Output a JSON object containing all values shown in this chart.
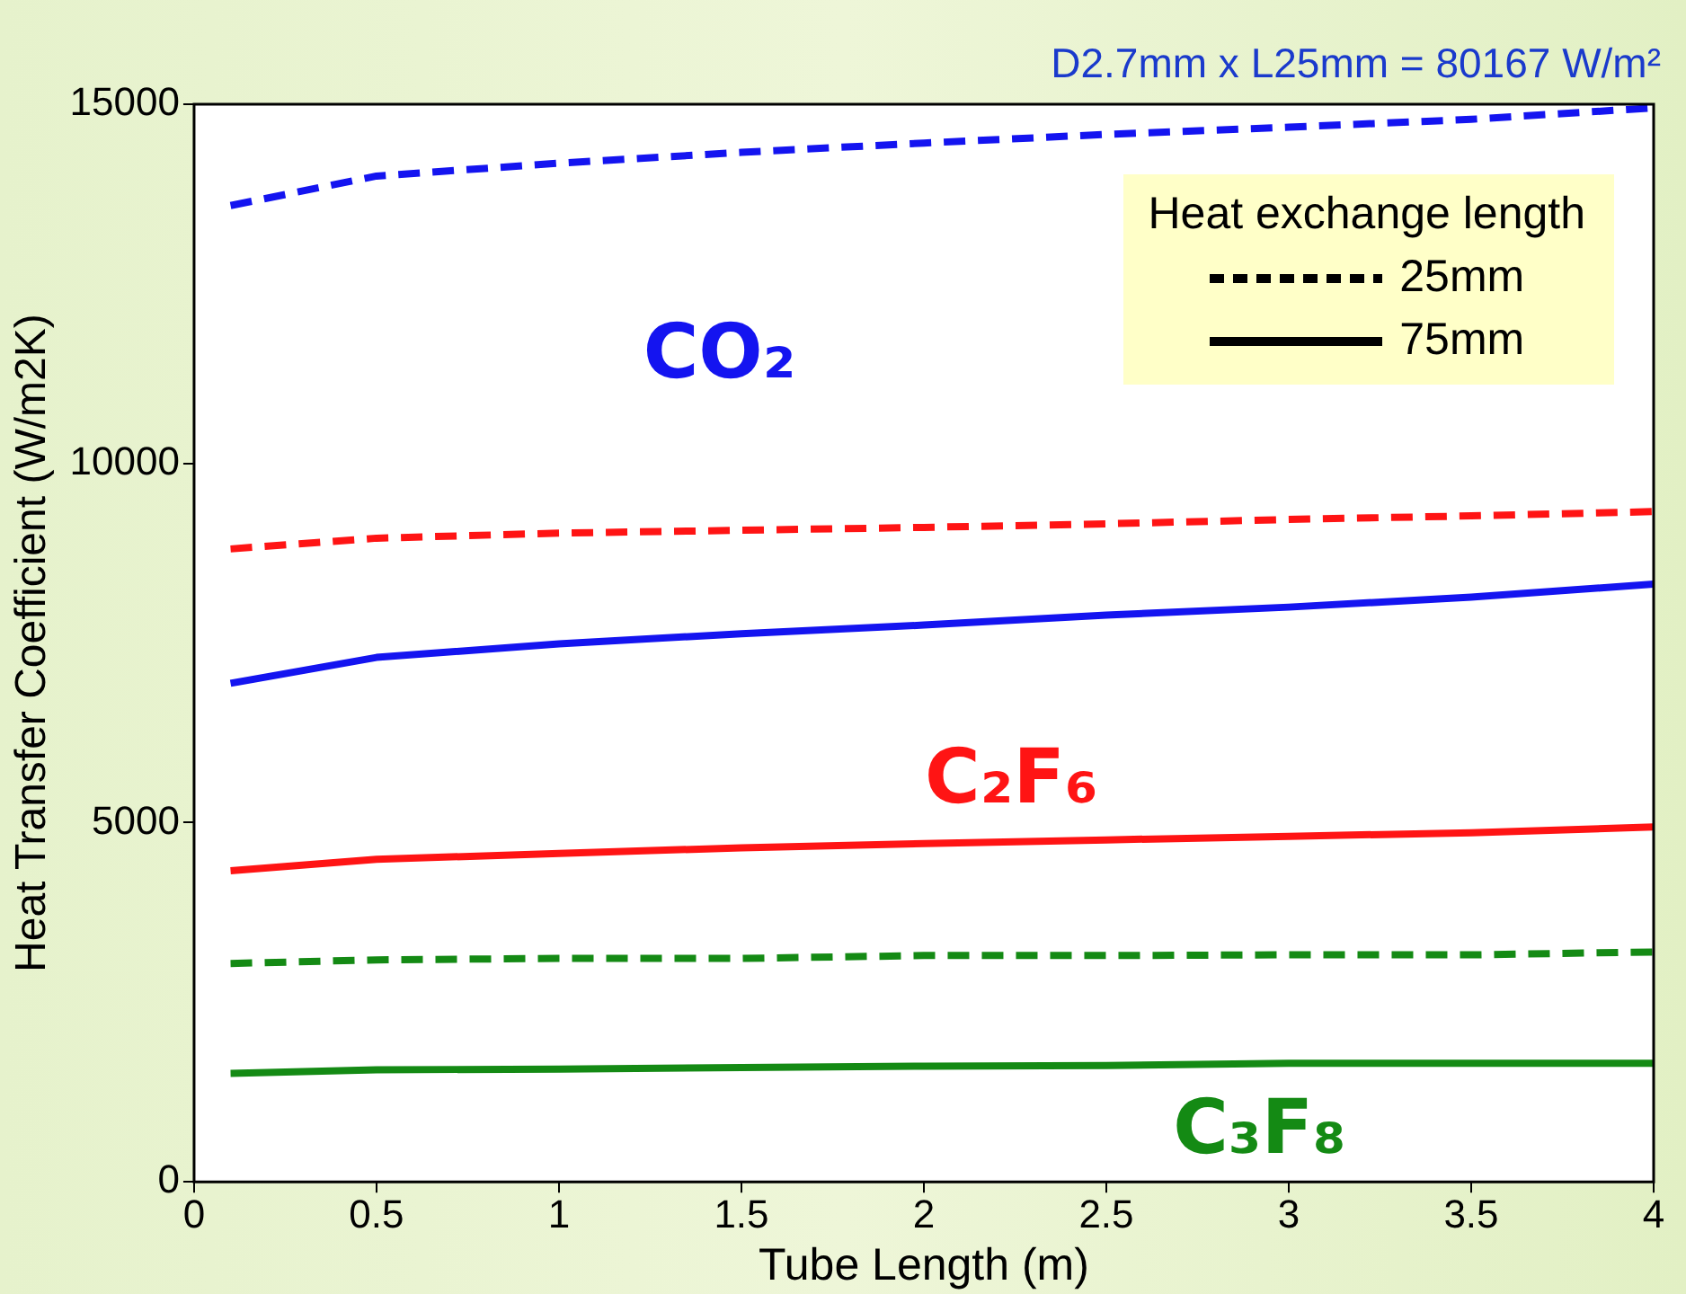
{
  "chart_data": {
    "type": "line",
    "subtitle": "D2.7mm x L25mm = 80167 W/m²",
    "xlabel": "Tube Length (m)",
    "ylabel": "Heat Transfer Coefficient (W/m2K)",
    "legend_title": "Heat exchange length",
    "grid": false,
    "marker": "none",
    "x": [
      0.1,
      0.5,
      1,
      1.5,
      2,
      2.5,
      3,
      3.5,
      4
    ],
    "xlim": [
      0,
      4
    ],
    "xticks": [
      0,
      0.5,
      1,
      1.5,
      2,
      2.5,
      3,
      3.5,
      4
    ],
    "ylim": [
      0,
      15000
    ],
    "yticks": [
      0,
      5000,
      10000,
      15000
    ],
    "series": [
      {
        "name": "CO₂",
        "color": "#1414f0",
        "line_style": "dashed",
        "values": [
          13590,
          14000,
          14180,
          14330,
          14460,
          14580,
          14680,
          14790,
          14950
        ]
      },
      {
        "color": "#1414f0",
        "line_style": "solid",
        "values": [
          6940,
          7300,
          7490,
          7630,
          7750,
          7890,
          8000,
          8140,
          8320
        ]
      },
      {
        "name": "C₂F₆",
        "color": "#ff1414",
        "line_style": "dashed",
        "values": [
          8810,
          8960,
          9030,
          9070,
          9110,
          9160,
          9220,
          9270,
          9330
        ]
      },
      {
        "color": "#ff1414",
        "line_style": "solid",
        "values": [
          4330,
          4490,
          4570,
          4650,
          4710,
          4760,
          4810,
          4860,
          4940
        ]
      },
      {
        "name": "C₃F₈",
        "color": "#148a14",
        "line_style": "dashed",
        "values": [
          3040,
          3090,
          3110,
          3110,
          3150,
          3150,
          3160,
          3160,
          3200
        ]
      },
      {
        "color": "#148a14",
        "line_style": "solid",
        "values": [
          1510,
          1560,
          1570,
          1590,
          1610,
          1620,
          1650,
          1650,
          1650
        ]
      }
    ],
    "annotations": [
      "25mm",
      "75mm"
    ]
  }
}
